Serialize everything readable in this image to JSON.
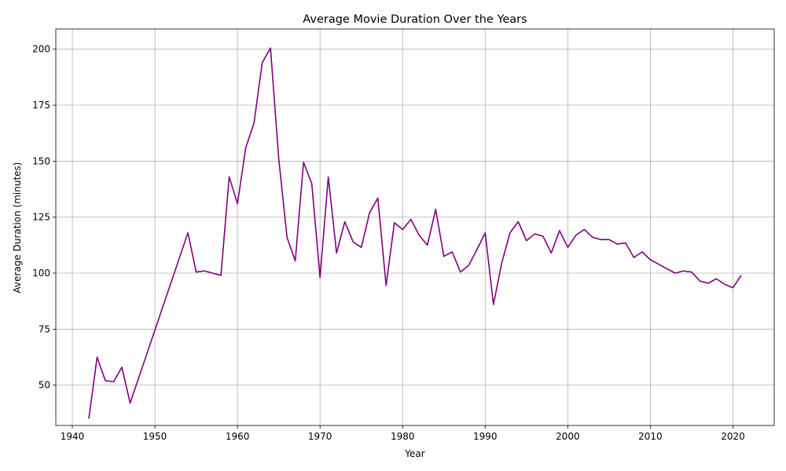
{
  "chart_data": {
    "type": "line",
    "title": "Average Movie Duration Over the Years",
    "xlabel": "Year",
    "ylabel": "Average Duration (minutes)",
    "xlim": [
      1938,
      2025
    ],
    "ylim": [
      32,
      209
    ],
    "xticks": [
      1940,
      1950,
      1960,
      1970,
      1980,
      1990,
      2000,
      2010,
      2020
    ],
    "yticks": [
      50,
      75,
      100,
      125,
      150,
      175,
      200
    ],
    "grid": true,
    "legend": false,
    "series": [
      {
        "name": "Average Duration",
        "color": "#800080",
        "x": [
          1942,
          1943,
          1944,
          1945,
          1946,
          1947,
          1954,
          1955,
          1956,
          1957,
          1958,
          1959,
          1960,
          1961,
          1962,
          1963,
          1964,
          1965,
          1966,
          1967,
          1968,
          1969,
          1970,
          1971,
          1972,
          1973,
          1974,
          1975,
          1976,
          1977,
          1978,
          1979,
          1980,
          1981,
          1982,
          1983,
          1984,
          1985,
          1986,
          1987,
          1988,
          1989,
          1990,
          1991,
          1992,
          1993,
          1994,
          1995,
          1996,
          1997,
          1998,
          1999,
          2000,
          2001,
          2002,
          2003,
          2004,
          2005,
          2006,
          2007,
          2008,
          2009,
          2010,
          2011,
          2012,
          2013,
          2014,
          2015,
          2016,
          2017,
          2018,
          2019,
          2020,
          2021
        ],
        "values": [
          35,
          62.5,
          52,
          51.5,
          58,
          42,
          118,
          100.5,
          101,
          100,
          99,
          143,
          131,
          156,
          167,
          194,
          200.5,
          151,
          116,
          105.5,
          149.5,
          140,
          98,
          143,
          109,
          123,
          114,
          111.5,
          127,
          133.5,
          94.5,
          122.5,
          119.5,
          124,
          117,
          112.5,
          128.5,
          107.5,
          109.5,
          100.5,
          103.5,
          110.5,
          118,
          86,
          104.5,
          118,
          123,
          114.5,
          117.5,
          116.5,
          109,
          119,
          111.5,
          117,
          119.5,
          116,
          115,
          115,
          113,
          113.5,
          107,
          109.5,
          106,
          104,
          102,
          100,
          101,
          100.5,
          96.5,
          95.5,
          97.5,
          95,
          93.5,
          99
        ]
      }
    ]
  }
}
